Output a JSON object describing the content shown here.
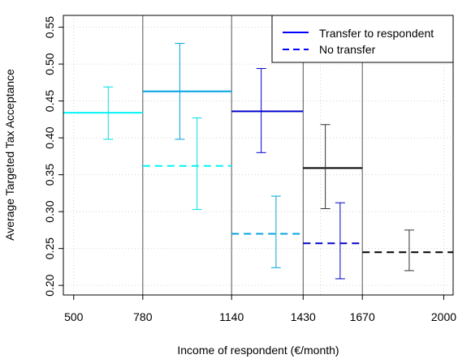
{
  "chart_data": {
    "type": "step",
    "xlabel": "Income of respondent (€/month)",
    "ylabel": "Average Targeted Tax Acceptance",
    "xlim": [
      458,
      2038
    ],
    "ylim": [
      0.187,
      0.566
    ],
    "x_ticks": [
      500,
      780,
      1140,
      1430,
      1670,
      2000
    ],
    "y_ticks": [
      "0.20",
      "0.25",
      "0.30",
      "0.35",
      "0.40",
      "0.45",
      "0.50",
      "0.55"
    ],
    "y_tick_values": [
      0.2,
      0.25,
      0.3,
      0.35,
      0.4,
      0.45,
      0.5,
      0.55
    ],
    "x_grid": [
      500,
      780,
      1140,
      1430,
      1670,
      2000,
      1500
    ],
    "bracket_lines": [
      780,
      1140,
      1430,
      1670
    ],
    "legend": {
      "placement": "top-right",
      "items": [
        {
          "label": "Transfer to respondent",
          "style": "solid",
          "color": "#0000ff"
        },
        {
          "label": "No transfer",
          "style": "dashed",
          "color": "#0000ff"
        }
      ]
    },
    "series": [
      {
        "name": "Transfer to respondent",
        "style": "solid",
        "segments": [
          {
            "x0": 458,
            "x1": 780,
            "y": 0.434,
            "color": "#00f5f5"
          },
          {
            "x0": 780,
            "x1": 1140,
            "y": 0.463,
            "color": "#00a3e0"
          },
          {
            "x0": 1140,
            "x1": 1430,
            "y": 0.436,
            "color": "#0000cd"
          },
          {
            "x0": 1430,
            "x1": 1670,
            "y": 0.359,
            "color": "#000000"
          }
        ],
        "error_bars": [
          {
            "x": 640,
            "lo": 0.398,
            "hi": 0.469,
            "color": "#00e0e8"
          },
          {
            "x": 930,
            "lo": 0.398,
            "hi": 0.528,
            "color": "#00a3e0"
          },
          {
            "x": 1260,
            "lo": 0.38,
            "hi": 0.494,
            "color": "#0000cd"
          },
          {
            "x": 1520,
            "lo": 0.304,
            "hi": 0.418,
            "color": "#333333"
          }
        ]
      },
      {
        "name": "No transfer",
        "style": "dashed",
        "segments": [
          {
            "x0": 780,
            "x1": 1140,
            "y": 0.362,
            "color": "#00f5f5"
          },
          {
            "x0": 1140,
            "x1": 1430,
            "y": 0.27,
            "color": "#00a3e0"
          },
          {
            "x0": 1430,
            "x1": 1670,
            "y": 0.257,
            "color": "#0000cd"
          },
          {
            "x0": 1670,
            "x1": 2038,
            "y": 0.245,
            "color": "#000000"
          }
        ],
        "error_bars": [
          {
            "x": 1000,
            "lo": 0.303,
            "hi": 0.427,
            "color": "#00e0e8"
          },
          {
            "x": 1320,
            "lo": 0.224,
            "hi": 0.321,
            "color": "#00a3e0"
          },
          {
            "x": 1580,
            "lo": 0.209,
            "hi": 0.312,
            "color": "#0000cd"
          },
          {
            "x": 1860,
            "lo": 0.22,
            "hi": 0.275,
            "color": "#333333"
          }
        ]
      }
    ]
  }
}
